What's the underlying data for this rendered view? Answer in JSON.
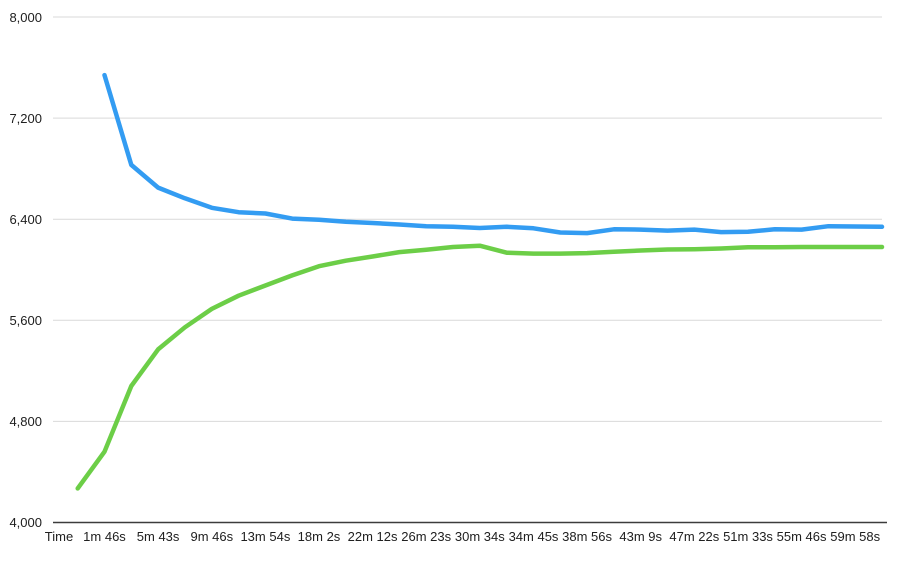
{
  "chart_data": {
    "type": "line",
    "title": "",
    "legend": "none",
    "grid": "horizontal",
    "background_color": "#FFFFFF",
    "gridline_color": "#D9D9D9",
    "axis_line_color": "#3C3C3C",
    "label_color": "#202020",
    "x_axis": {
      "title": "Time",
      "tick_labels": [
        "1m 46s",
        "5m 43s",
        "9m 46s",
        "13m 54s",
        "18m 2s",
        "22m 12s",
        "26m 23s",
        "30m 34s",
        "34m 45s",
        "38m 56s",
        "43m 9s",
        "47m 22s",
        "51m 33s",
        "55m 46s",
        "59m 58s"
      ],
      "tick_steps": [
        1,
        3,
        5,
        7,
        9,
        11,
        13,
        15,
        17,
        19,
        21,
        23,
        25,
        27,
        29
      ],
      "total_steps": 30
    },
    "y_axis": {
      "tick_labels": [
        "4,000",
        "4,800",
        "5,600",
        "6,400",
        "7,200",
        "8,000"
      ],
      "min": 4000,
      "max": 8000,
      "step": 800
    },
    "series": [
      {
        "name": "blue-series",
        "color": "#339CF2",
        "start_step": 1,
        "values": [
          7540,
          6830,
          6650,
          6565,
          6490,
          6455,
          6445,
          6405,
          6395,
          6380,
          6370,
          6358,
          6345,
          6340,
          6330,
          6340,
          6328,
          6295,
          6290,
          6320,
          6318,
          6310,
          6318,
          6298,
          6300,
          6320,
          6318,
          6345,
          6342,
          6340
        ]
      },
      {
        "name": "green-series",
        "color": "#6CCE47",
        "start_step": 0,
        "values": [
          4270,
          4560,
          5080,
          5370,
          5545,
          5690,
          5795,
          5875,
          5955,
          6028,
          6072,
          6105,
          6140,
          6158,
          6180,
          6190,
          6135,
          6128,
          6128,
          6132,
          6142,
          6152,
          6160,
          6163,
          6168,
          6178,
          6178,
          6180,
          6180,
          6180,
          6180
        ]
      }
    ]
  }
}
